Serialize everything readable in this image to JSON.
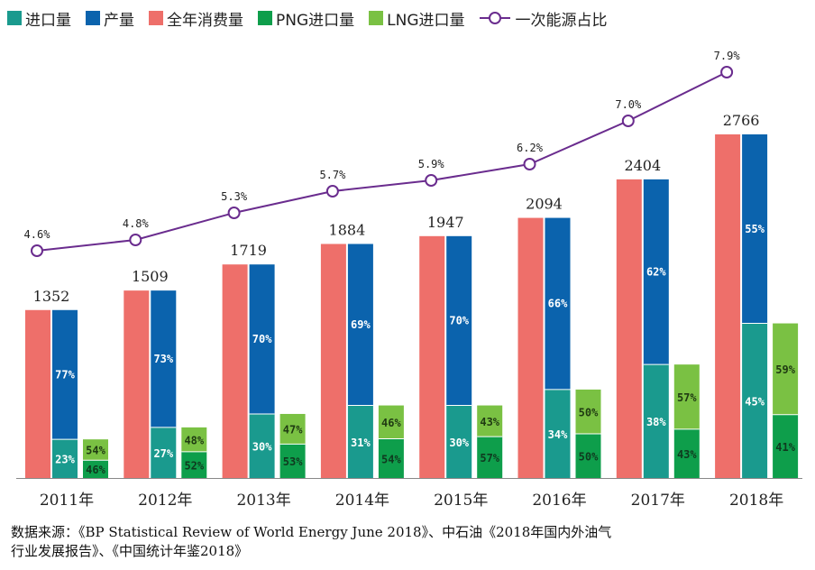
{
  "colors": {
    "import": "#1a9a8e",
    "production": "#0b63ad",
    "consumption": "#ee6f6a",
    "png": "#0e9e4b",
    "lng": "#7ac143",
    "ratio_line": "#6a2c8e"
  },
  "chart_data": {
    "type": "bar",
    "categories": [
      "2011年",
      "2012年",
      "2013年",
      "2014年",
      "2015年",
      "2016年",
      "2017年",
      "2018年"
    ],
    "series": [
      {
        "name": "全年消费量",
        "key": "consumption",
        "values": [
          1352,
          1509,
          1719,
          1884,
          1947,
          2094,
          2404,
          2766
        ]
      },
      {
        "name": "产量",
        "key": "production",
        "share_labels": [
          "77%",
          "73%",
          "70%",
          "69%",
          "70%",
          "66%",
          "62%",
          "55%"
        ]
      },
      {
        "name": "进口量",
        "key": "import",
        "share_labels": [
          "23%",
          "27%",
          "30%",
          "31%",
          "30%",
          "34%",
          "38%",
          "45%"
        ]
      },
      {
        "name": "PNG进口量",
        "key": "png",
        "share_labels": [
          "46%",
          "52%",
          "53%",
          "54%",
          "57%",
          "50%",
          "43%",
          "41%"
        ]
      },
      {
        "name": "LNG进口量",
        "key": "lng",
        "share_labels": [
          "54%",
          "48%",
          "47%",
          "46%",
          "43%",
          "50%",
          "57%",
          "59%"
        ]
      },
      {
        "name": "一次能源占比",
        "key": "ratio",
        "type": "line",
        "values": [
          4.6,
          4.8,
          5.3,
          5.7,
          5.9,
          6.2,
          7.0,
          7.9
        ],
        "labels": [
          "4.6%",
          "4.8%",
          "5.3%",
          "5.7%",
          "5.9%",
          "6.2%",
          "7.0%",
          "7.9%"
        ]
      }
    ],
    "consumption_labels": [
      "1352",
      "1509",
      "1719",
      "1884",
      "1947",
      "2094",
      "2404",
      "2766"
    ],
    "ylim": [
      0,
      2766
    ],
    "ratio_ylim": [
      4.6,
      7.9
    ],
    "grid": false,
    "legend_position": "top"
  },
  "legend": {
    "import": "进口量",
    "production": "产量",
    "consumption": "全年消费量",
    "png": "PNG进口量",
    "lng": "LNG进口量",
    "ratio": "一次能源占比"
  },
  "source": {
    "line1": "数据来源：《BP Statistical Review of World Energy June 2018》、中石油《2018年国内外油气",
    "line2": "行业发展报告》、《中国统计年鉴2018》"
  }
}
